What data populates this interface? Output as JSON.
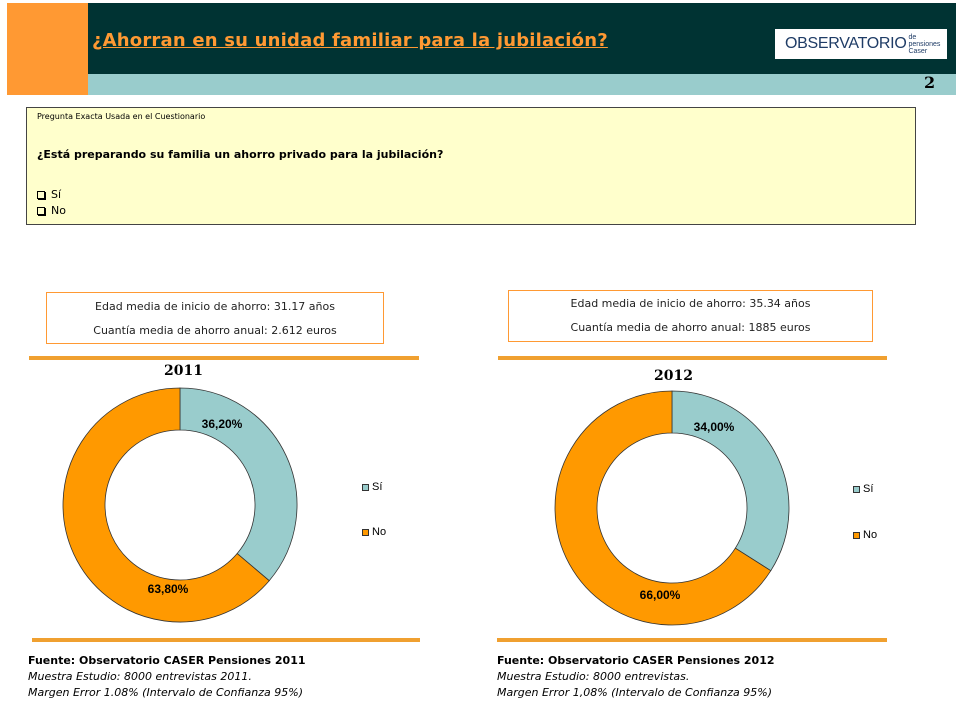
{
  "header": {
    "title": "¿Ahorran en su unidad familiar para la jubilación?",
    "logo_main": "OBSERVATORIO",
    "logo_sub_1": "de pensiones",
    "logo_sub_2": "Caser",
    "page_number": "2",
    "colors": {
      "orange": "#ff9933",
      "dark": "#003333",
      "teal": "#99cccc"
    }
  },
  "question": {
    "label": "Pregunta Exacta Usada en el Cuestionario",
    "text": "¿Está preparando su familia un ahorro privado para la jubilación?",
    "options": [
      "Sí",
      "No"
    ]
  },
  "panels": [
    {
      "stats": [
        "Edad media de inicio de ahorro: 31.17 años",
        "Cuantía media de ahorro anual: 2.612 euros"
      ],
      "source": "Fuente: Observatorio CASER Pensiones 2011",
      "sample": "Muestra Estudio: 8000 entrevistas 2011.",
      "error": "Margen Error 1.08% (Intervalo de Confianza 95%)"
    },
    {
      "stats": [
        "Edad media de inicio de ahorro: 35.34 años",
        "Cuantía media de ahorro anual: 1885 euros"
      ],
      "source": "Fuente: Observatorio CASER Pensiones 2012",
      "sample": "Muestra Estudio: 8000 entrevistas.",
      "error": "Margen Error 1,08% (Intervalo de Confianza 95%)"
    }
  ],
  "chart_data": [
    {
      "type": "pie",
      "donut": true,
      "title": "2011",
      "categories": [
        "Sí",
        "No"
      ],
      "values": [
        36.2,
        63.8
      ],
      "labels": [
        "36,20%",
        "63,80%"
      ],
      "colors": [
        "#99cccc",
        "#ff9900"
      ],
      "legend": "right"
    },
    {
      "type": "pie",
      "donut": true,
      "title": "2012",
      "categories": [
        "Sí",
        "No"
      ],
      "values": [
        34.0,
        66.0
      ],
      "labels": [
        "34,00%",
        "66,00%"
      ],
      "colors": [
        "#99cccc",
        "#ff9900"
      ],
      "legend": "right"
    }
  ]
}
